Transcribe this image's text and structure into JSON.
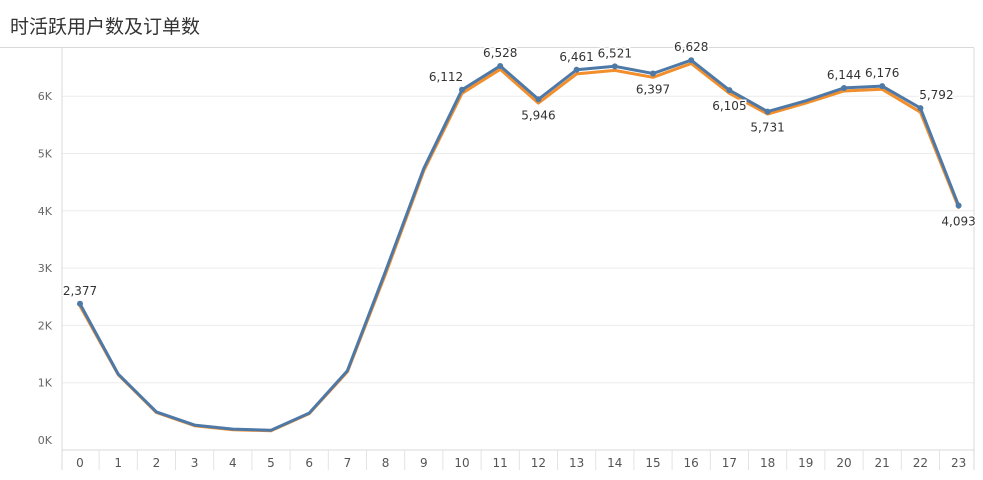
{
  "chart_data": {
    "type": "line",
    "title": "时活跃用户数及订单数",
    "xlabel": "",
    "ylabel": "",
    "categories": [
      "0",
      "1",
      "2",
      "3",
      "4",
      "5",
      "6",
      "7",
      "8",
      "9",
      "10",
      "11",
      "12",
      "13",
      "14",
      "15",
      "16",
      "17",
      "18",
      "19",
      "20",
      "21",
      "22",
      "23"
    ],
    "y_ticks": [
      {
        "value": 0,
        "label": "0K"
      },
      {
        "value": 1000,
        "label": "1K"
      },
      {
        "value": 2000,
        "label": "2K"
      },
      {
        "value": 3000,
        "label": "3K"
      },
      {
        "value": 4000,
        "label": "4K"
      },
      {
        "value": 5000,
        "label": "5K"
      },
      {
        "value": 6000,
        "label": "6K"
      }
    ],
    "ylim": [
      -100,
      6950
    ],
    "grid": true,
    "series": [
      {
        "color": "#f28e2b",
        "values": [
          2340,
          1140,
          480,
          250,
          180,
          160,
          460,
          1190,
          2900,
          4700,
          6050,
          6470,
          5880,
          6390,
          6450,
          6330,
          6570,
          6050,
          5690,
          5880,
          6090,
          6120,
          5720,
          4060
        ]
      },
      {
        "color": "#4e79a7",
        "values": [
          2377,
          1150,
          490,
          260,
          190,
          170,
          470,
          1210,
          2950,
          4740,
          6112,
          6528,
          5946,
          6461,
          6521,
          6397,
          6628,
          6105,
          5731,
          5920,
          6144,
          6176,
          5792,
          4093
        ]
      }
    ],
    "data_labels": [
      {
        "index": 0,
        "text": "2,377",
        "position": "above"
      },
      {
        "index": 10,
        "text": "6,112",
        "position": "above-left"
      },
      {
        "index": 11,
        "text": "6,528",
        "position": "above"
      },
      {
        "index": 12,
        "text": "5,946",
        "position": "below"
      },
      {
        "index": 13,
        "text": "6,461",
        "position": "above"
      },
      {
        "index": 14,
        "text": "6,521",
        "position": "above"
      },
      {
        "index": 15,
        "text": "6,397",
        "position": "below"
      },
      {
        "index": 16,
        "text": "6,628",
        "position": "above"
      },
      {
        "index": 17,
        "text": "6,105",
        "position": "below"
      },
      {
        "index": 18,
        "text": "5,731",
        "position": "below"
      },
      {
        "index": 20,
        "text": "6,144",
        "position": "above"
      },
      {
        "index": 21,
        "text": "6,176",
        "position": "above"
      },
      {
        "index": 22,
        "text": "5,792",
        "position": "above-right"
      },
      {
        "index": 23,
        "text": "4,093",
        "position": "below"
      }
    ]
  }
}
